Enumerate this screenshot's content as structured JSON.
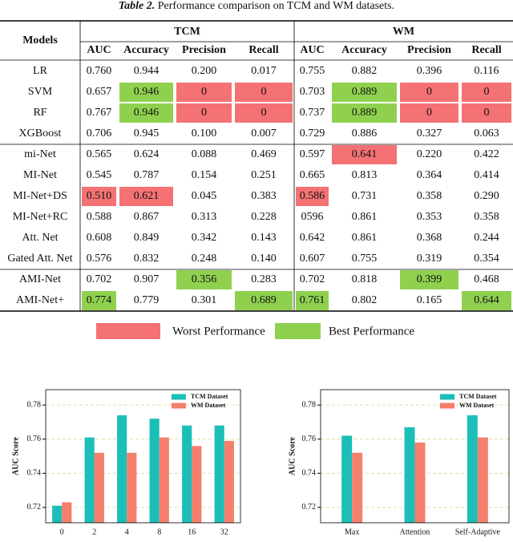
{
  "caption": {
    "label": "Table 2.",
    "text": "Performance comparison on TCM and WM datasets."
  },
  "table": {
    "models_header": "Models",
    "groups": [
      {
        "name": "TCM",
        "columns": [
          "AUC",
          "Accuracy",
          "Precision",
          "Recall"
        ]
      },
      {
        "name": "WM",
        "columns": [
          "AUC",
          "Accuracy",
          "Precision",
          "Recall"
        ]
      }
    ],
    "sections": [
      [
        {
          "model": "LR",
          "cells": [
            "0.760",
            "0.944",
            "0.200",
            "0.017",
            "0.755",
            "0.882",
            "0.396",
            "0.116"
          ]
        },
        {
          "model": "SVM",
          "cells": [
            "0.657",
            {
              "text": "0.946",
              "mark": "best"
            },
            {
              "text": "0",
              "mark": "worst"
            },
            {
              "text": "0",
              "mark": "worst"
            },
            "0.703",
            {
              "text": "0.889",
              "mark": "best"
            },
            {
              "text": "0",
              "mark": "worst"
            },
            {
              "text": "0",
              "mark": "worst"
            }
          ]
        },
        {
          "model": "RF",
          "cells": [
            "0.767",
            {
              "text": "0.946",
              "mark": "best"
            },
            {
              "text": "0",
              "mark": "worst"
            },
            {
              "text": "0",
              "mark": "worst"
            },
            "0.737",
            {
              "text": "0.889",
              "mark": "best"
            },
            {
              "text": "0",
              "mark": "worst"
            },
            {
              "text": "0",
              "mark": "worst"
            }
          ]
        },
        {
          "model": "XGBoost",
          "cells": [
            "0.706",
            "0.945",
            "0.100",
            "0.007",
            "0.729",
            "0.886",
            "0.327",
            "0.063"
          ]
        }
      ],
      [
        {
          "model": "mi-Net",
          "cells": [
            "0.565",
            "0.624",
            "0.088",
            "0.469",
            "0.597",
            {
              "text": "0.641",
              "mark": "worst"
            },
            "0.220",
            "0.422"
          ]
        },
        {
          "model": "MI-Net",
          "cells": [
            "0.545",
            "0.787",
            "0.154",
            "0.251",
            "0.665",
            "0.813",
            "0.364",
            "0.414"
          ]
        },
        {
          "model": "MI-Net+DS",
          "cells": [
            {
              "text": "0.510",
              "mark": "worst"
            },
            {
              "text": "0.621",
              "mark": "worst"
            },
            "0.045",
            "0.383",
            {
              "text": "0.586",
              "mark": "worst"
            },
            "0.731",
            "0.358",
            "0.290"
          ]
        },
        {
          "model": "MI-Net+RC",
          "cells": [
            "0.588",
            "0.867",
            "0.313",
            "0.228",
            "0596",
            "0.861",
            "0.353",
            "0.358"
          ]
        },
        {
          "model": "Att. Net",
          "cells": [
            "0.608",
            "0.849",
            "0.342",
            "0.143",
            "0.642",
            "0.861",
            "0.368",
            "0.244"
          ]
        },
        {
          "model": "Gated Att. Net",
          "cells": [
            "0.576",
            "0.832",
            "0.248",
            "0.140",
            "0.607",
            "0.755",
            "0.319",
            "0.354"
          ]
        }
      ],
      [
        {
          "model": "AMI-Net",
          "cells": [
            "0.702",
            "0.907",
            {
              "text": "0.356",
              "mark": "best"
            },
            "0.283",
            "0.702",
            "0.818",
            {
              "text": "0.399",
              "mark": "best"
            },
            "0.468"
          ]
        },
        {
          "model": "AMI-Net+",
          "cells": [
            {
              "text": "0.774",
              "mark": "best"
            },
            "0.779",
            "0.301",
            {
              "text": "0.689",
              "mark": "best"
            },
            {
              "text": "0.761",
              "mark": "best"
            },
            "0.802",
            "0.165",
            {
              "text": "0.644",
              "mark": "best"
            }
          ]
        }
      ]
    ]
  },
  "legend": {
    "worst": {
      "label": "Worst Performance",
      "color": "#f47174"
    },
    "best": {
      "label": "Best Performance",
      "color": "#8fd14f"
    }
  },
  "chart_data": [
    {
      "type": "bar",
      "categories": [
        "0",
        "2",
        "4",
        "8",
        "16",
        "32"
      ],
      "series": [
        {
          "name": "TCM Dataset",
          "color": "#1bbfb8",
          "values": [
            0.721,
            0.761,
            0.774,
            0.772,
            0.768,
            0.768
          ]
        },
        {
          "name": "WM Dataset",
          "color": "#f47f6c",
          "values": [
            0.723,
            0.752,
            0.752,
            0.761,
            0.756,
            0.759
          ]
        }
      ],
      "ylabel": "AUC Score",
      "ylim": [
        0.711,
        0.789
      ],
      "yticks": [
        0.72,
        0.74,
        0.76,
        0.78
      ],
      "grid": true,
      "legend": "upper right"
    },
    {
      "type": "bar",
      "categories": [
        "Max",
        "Attention",
        "Self-Adaptive"
      ],
      "series": [
        {
          "name": "TCM Dataset",
          "color": "#1bbfb8",
          "values": [
            0.762,
            0.767,
            0.774
          ]
        },
        {
          "name": "WM Dataset",
          "color": "#f47f6c",
          "values": [
            0.752,
            0.758,
            0.761
          ]
        }
      ],
      "ylabel": "AUC Score",
      "ylim": [
        0.711,
        0.789
      ],
      "yticks": [
        0.72,
        0.74,
        0.76,
        0.78
      ],
      "grid": true,
      "legend": "upper right"
    }
  ]
}
